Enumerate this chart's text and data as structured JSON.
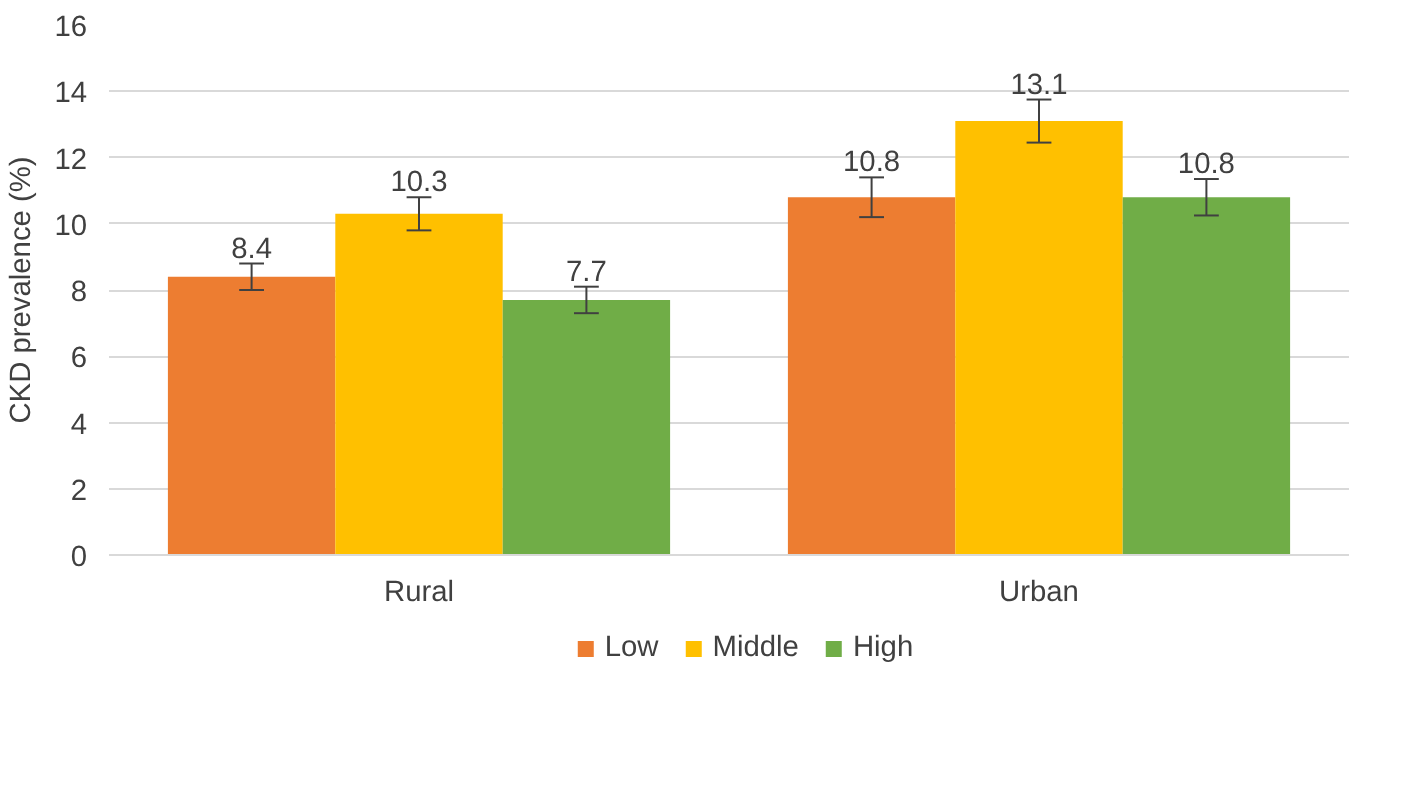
{
  "chart_data": {
    "type": "bar",
    "ylabel": "CKD prevalence (%)",
    "categories": [
      "Rural",
      "Urban"
    ],
    "series": [
      {
        "name": "Low",
        "color": "#ed7d31",
        "values": [
          8.4,
          10.8
        ],
        "errors": [
          0.4,
          0.6
        ]
      },
      {
        "name": "Middle",
        "color": "#ffc000",
        "values": [
          10.3,
          13.1
        ],
        "errors": [
          0.5,
          0.65
        ]
      },
      {
        "name": "High",
        "color": "#70ad47",
        "values": [
          7.7,
          10.8
        ],
        "errors": [
          0.4,
          0.55
        ]
      }
    ],
    "ylim": [
      0,
      16
    ],
    "yticks": [
      0,
      2,
      4,
      6,
      8,
      10,
      12,
      14,
      16
    ],
    "grid": "y",
    "legend": "bottom",
    "data_labels": true
  }
}
